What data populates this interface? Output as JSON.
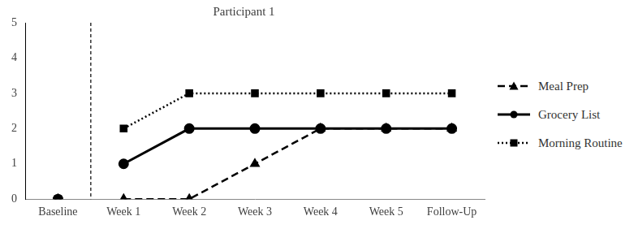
{
  "chart_data": {
    "type": "line",
    "title": "Participant 1",
    "categories": [
      "Baseline",
      "Week 1",
      "Week 2",
      "Week 3",
      "Week 4",
      "Week 5",
      "Follow-Up"
    ],
    "series": [
      {
        "name": "Meal Prep",
        "color": "#000000",
        "marker": "triangle",
        "line_style": "dashed",
        "values": [
          0,
          0,
          0,
          1,
          2,
          2,
          2
        ]
      },
      {
        "name": "Grocery List",
        "color": "#000000",
        "marker": "circle",
        "line_style": "solid",
        "values": [
          0,
          1,
          2,
          2,
          2,
          2,
          2
        ]
      },
      {
        "name": "Morning Routine",
        "color": "#000000",
        "marker": "square",
        "line_style": "dotted",
        "values": [
          0,
          2,
          3,
          3,
          3,
          3,
          3
        ]
      }
    ],
    "ylim": [
      0,
      5
    ],
    "yticks": [
      0,
      1,
      2,
      3,
      4,
      5
    ],
    "grid": false,
    "legend": "right"
  }
}
